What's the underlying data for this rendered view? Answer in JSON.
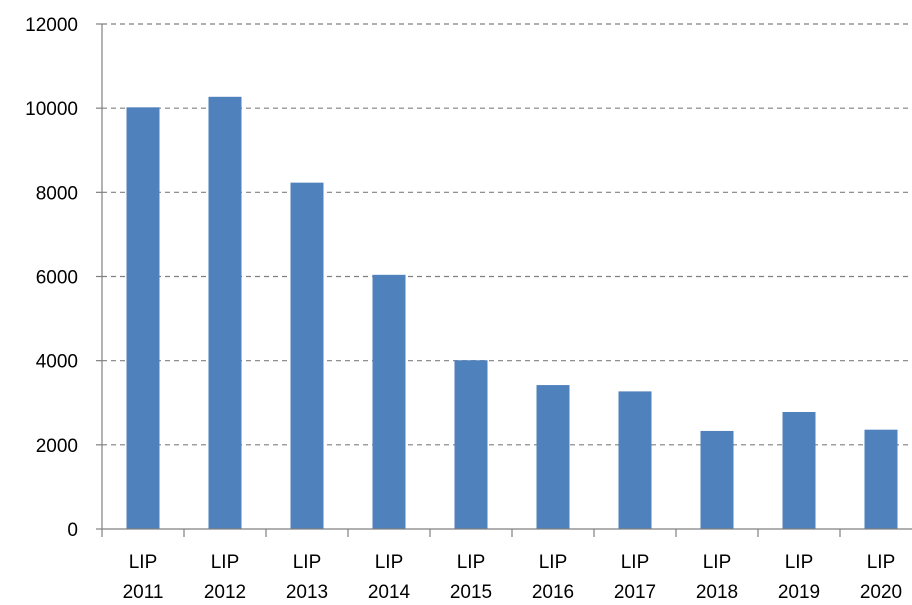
{
  "chart_data": {
    "type": "bar",
    "categories": [
      [
        "LIP",
        "2011"
      ],
      [
        "LIP",
        "2012"
      ],
      [
        "LIP",
        "2013"
      ],
      [
        "LIP",
        "2014"
      ],
      [
        "LIP",
        "2015"
      ],
      [
        "LIP",
        "2016"
      ],
      [
        "LIP",
        "2017"
      ],
      [
        "LIP",
        "2018"
      ],
      [
        "LIP",
        "2019"
      ],
      [
        "LIP",
        "2020"
      ]
    ],
    "values": [
      10020,
      10270,
      8230,
      6040,
      4010,
      3420,
      3270,
      2330,
      2780,
      2360
    ],
    "ylim": [
      0,
      12000
    ],
    "yticks": [
      "0",
      "2000",
      "4000",
      "6000",
      "8000",
      "10000",
      "12000"
    ],
    "grid": true,
    "bar_color": "#4F81BD",
    "grid_color": "#808080",
    "legend": "none"
  }
}
